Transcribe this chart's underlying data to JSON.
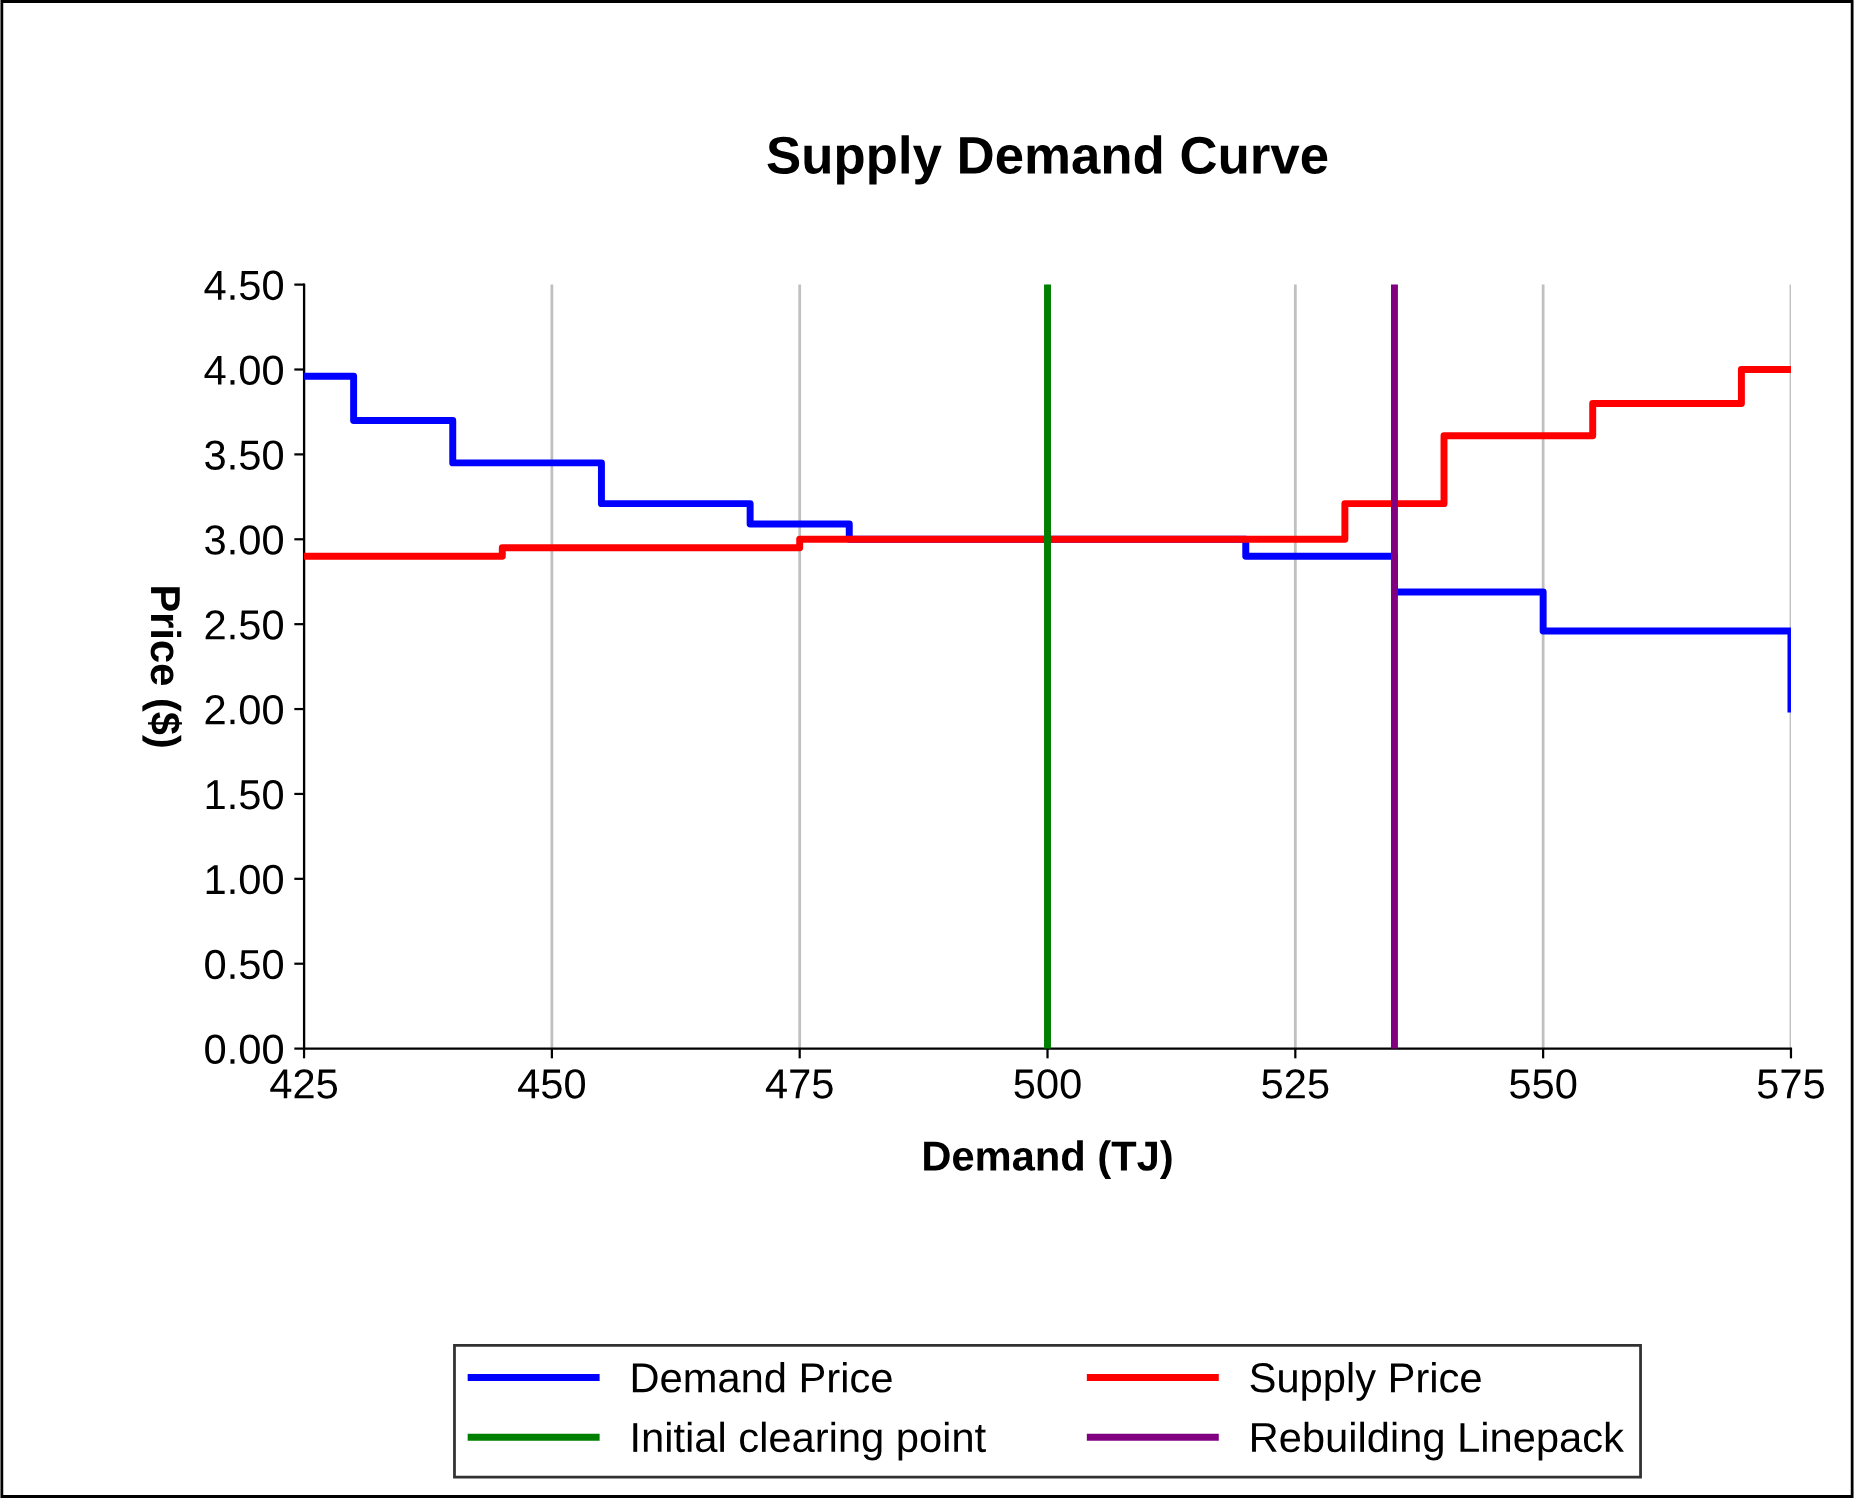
{
  "chart_data": {
    "type": "step",
    "title": "Supply Demand Curve",
    "xlabel": "Demand (TJ)",
    "ylabel": "Price ($)",
    "series": [
      {
        "name": "Demand Price",
        "color": "#0000ff",
        "x": [
          425,
          430,
          440,
          455,
          470,
          480,
          520,
          535,
          550,
          575
        ],
        "values": [
          3.96,
          3.7,
          3.45,
          3.21,
          3.09,
          3.0,
          2.9,
          2.69,
          2.46,
          2.0
        ]
      },
      {
        "name": "Supply Price",
        "color": "#ff0000",
        "x": [
          425,
          445,
          475,
          530,
          540,
          555,
          570,
          575
        ],
        "values": [
          2.9,
          2.95,
          3.0,
          3.21,
          3.61,
          3.8,
          4.0,
          4.0
        ]
      }
    ],
    "ref_lines": [
      {
        "axis": "x",
        "value": 500,
        "label": "Initial clearing point",
        "color": "#008000"
      },
      {
        "axis": "x",
        "value": 535,
        "label": "Rebuilding Linepack",
        "color": "#800080"
      }
    ],
    "xlim": [
      425,
      575
    ],
    "xticks": [
      425,
      450,
      475,
      500,
      525,
      550,
      575
    ],
    "ylim": [
      0,
      4.5
    ],
    "yticks": [
      {
        "value": 0,
        "label": "0.00"
      },
      {
        "value": 0.5,
        "label": "0.50"
      },
      {
        "value": 1,
        "label": "1.00"
      },
      {
        "value": 1.5,
        "label": "1.50"
      },
      {
        "value": 2,
        "label": "2.00"
      },
      {
        "value": 2.5,
        "label": "2.50"
      },
      {
        "value": 3,
        "label": "3.00"
      },
      {
        "value": 3.5,
        "label": "3.50"
      },
      {
        "value": 4,
        "label": "4.00"
      },
      {
        "value": 4.5,
        "label": "4.50"
      }
    ],
    "grid": "x",
    "legend": "bottom"
  }
}
